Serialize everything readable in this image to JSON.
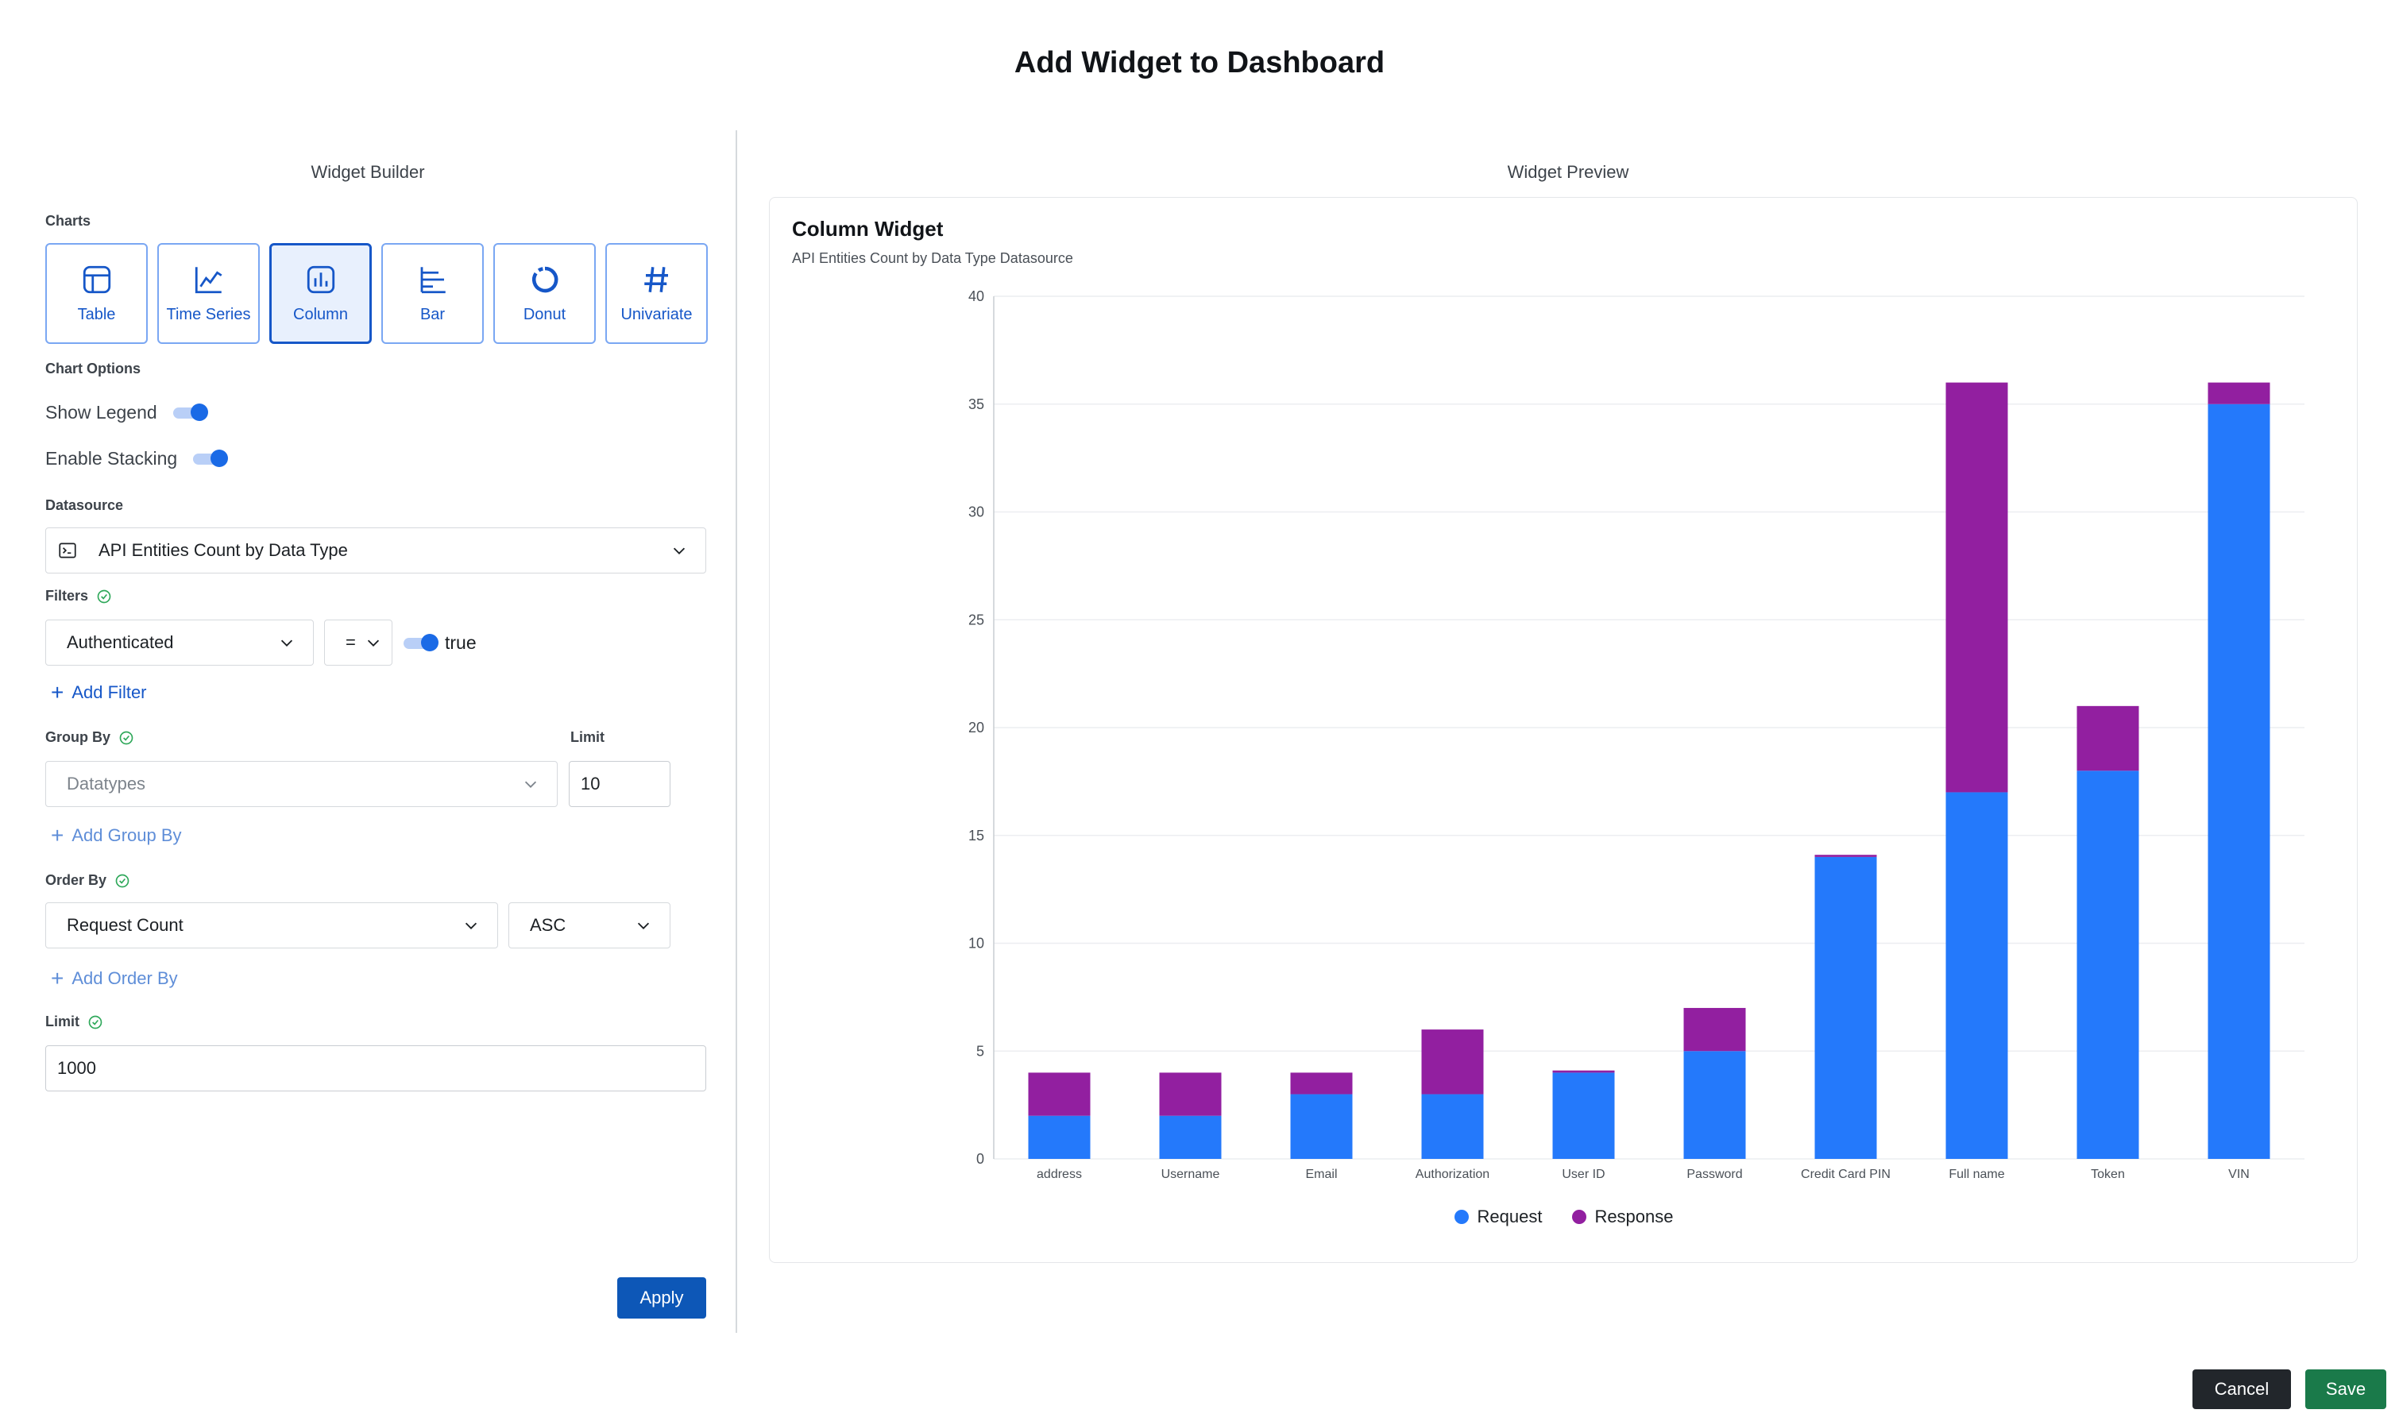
{
  "title": "Add Widget to Dashboard",
  "builder": {
    "title": "Widget Builder",
    "charts_label": "Charts",
    "chart_types": [
      {
        "label": "Table",
        "icon": "table-icon"
      },
      {
        "label": "Time Series",
        "icon": "line-chart-icon"
      },
      {
        "label": "Column",
        "icon": "column-chart-icon",
        "active": true
      },
      {
        "label": "Bar",
        "icon": "bar-chart-icon"
      },
      {
        "label": "Donut",
        "icon": "donut-icon"
      },
      {
        "label": "Univariate",
        "icon": "hash-icon"
      }
    ],
    "chart_options_label": "Chart Options",
    "show_legend_label": "Show Legend",
    "show_legend": true,
    "enable_stacking_label": "Enable Stacking",
    "enable_stacking": true,
    "datasource_label": "Datasource",
    "datasource_value": "API Entities Count by Data Type",
    "filters_label": "Filters",
    "filter": {
      "field": "Authenticated",
      "operator": "=",
      "value_label": "true",
      "value": true
    },
    "add_filter": "Add Filter",
    "group_by_label": "Group By",
    "group_by_value": "Datatypes",
    "group_limit_label": "Limit",
    "group_limit_value": "10",
    "add_group_by": "Add Group By",
    "order_by_label": "Order By",
    "order_by_value": "Request Count",
    "order_dir_value": "ASC",
    "add_order_by": "Add Order By",
    "limit_label": "Limit",
    "limit_value": "1000",
    "apply": "Apply"
  },
  "preview": {
    "title": "Widget Preview",
    "widget_name": "Column Widget",
    "widget_subtitle": "API Entities Count by Data Type Datasource"
  },
  "chart_data": {
    "type": "bar",
    "stacked": true,
    "categories": [
      "address",
      "Username",
      "Email",
      "Authorization",
      "User ID",
      "Password",
      "Credit Card PIN",
      "Full name",
      "Token",
      "VIN"
    ],
    "series": [
      {
        "name": "Request",
        "color": "#2479fb",
        "values": [
          2,
          2,
          3,
          3,
          4,
          5,
          14,
          17,
          18,
          35
        ]
      },
      {
        "name": "Response",
        "color": "#921fa0",
        "values": [
          2,
          2,
          1,
          3,
          0.1,
          2,
          0.1,
          19,
          3,
          1
        ]
      }
    ],
    "ylim": [
      0,
      40
    ],
    "yticks": [
      0,
      5,
      10,
      15,
      20,
      25,
      30,
      35,
      40
    ],
    "grid": true,
    "legend": "bottom"
  },
  "footer": {
    "cancel": "Cancel",
    "save": "Save"
  },
  "colors": {
    "accent": "#1657c8",
    "apply": "#0d57b7",
    "cancel": "#22262b",
    "save": "#1a7a4a",
    "success": "#2fa85a"
  }
}
